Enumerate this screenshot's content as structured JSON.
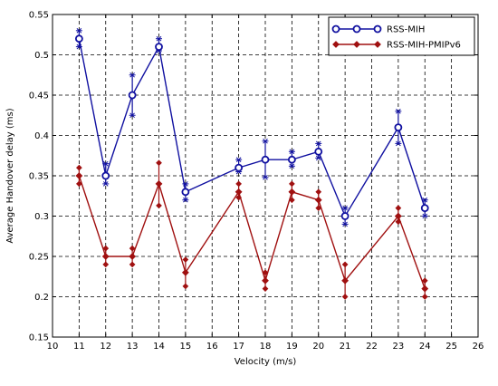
{
  "chart_data": {
    "type": "line",
    "xlabel": "Velocity (m/s)",
    "ylabel": "Average Handover delay (ms)",
    "xlim": [
      10,
      26
    ],
    "ylim": [
      0.15,
      0.55
    ],
    "xticks": [
      10,
      11,
      12,
      13,
      14,
      15,
      16,
      17,
      18,
      19,
      20,
      21,
      22,
      23,
      24,
      25,
      26
    ],
    "yticks": [
      0.15,
      0.2,
      0.25,
      0.3,
      0.35,
      0.4,
      0.45,
      0.5,
      0.55
    ],
    "ytick_labels": [
      "0.15",
      "0.2",
      "0.25",
      "0.3",
      "0.35",
      "0.4",
      "0.45",
      "0.5",
      "0.55"
    ],
    "grid": true,
    "legend_position": "top-right",
    "series": [
      {
        "name": "RSS-MIH",
        "color": "#1010a0",
        "marker": "circle",
        "x": [
          11,
          12,
          13,
          14,
          15,
          17,
          18,
          19,
          20,
          21,
          23,
          24
        ],
        "y": [
          0.52,
          0.35,
          0.45,
          0.51,
          0.33,
          0.36,
          0.37,
          0.37,
          0.38,
          0.3,
          0.41,
          0.31
        ],
        "err_low": [
          0.51,
          0.34,
          0.425,
          0.505,
          0.32,
          0.355,
          0.348,
          0.362,
          0.372,
          0.29,
          0.39,
          0.3
        ],
        "err_high": [
          0.53,
          0.365,
          0.475,
          0.52,
          0.34,
          0.37,
          0.393,
          0.38,
          0.39,
          0.31,
          0.43,
          0.32
        ]
      },
      {
        "name": "RSS-MIH-PMIPv6",
        "color": "#a01010",
        "marker": "diamond",
        "x": [
          11,
          12,
          13,
          14,
          15,
          17,
          18,
          19,
          20,
          21,
          23,
          24
        ],
        "y": [
          0.35,
          0.25,
          0.25,
          0.34,
          0.23,
          0.33,
          0.22,
          0.33,
          0.32,
          0.22,
          0.3,
          0.21
        ],
        "err_low": [
          0.34,
          0.24,
          0.24,
          0.313,
          0.213,
          0.323,
          0.21,
          0.32,
          0.31,
          0.2,
          0.293,
          0.2
        ],
        "err_high": [
          0.36,
          0.26,
          0.26,
          0.366,
          0.246,
          0.34,
          0.23,
          0.34,
          0.33,
          0.24,
          0.31,
          0.22
        ]
      }
    ]
  }
}
